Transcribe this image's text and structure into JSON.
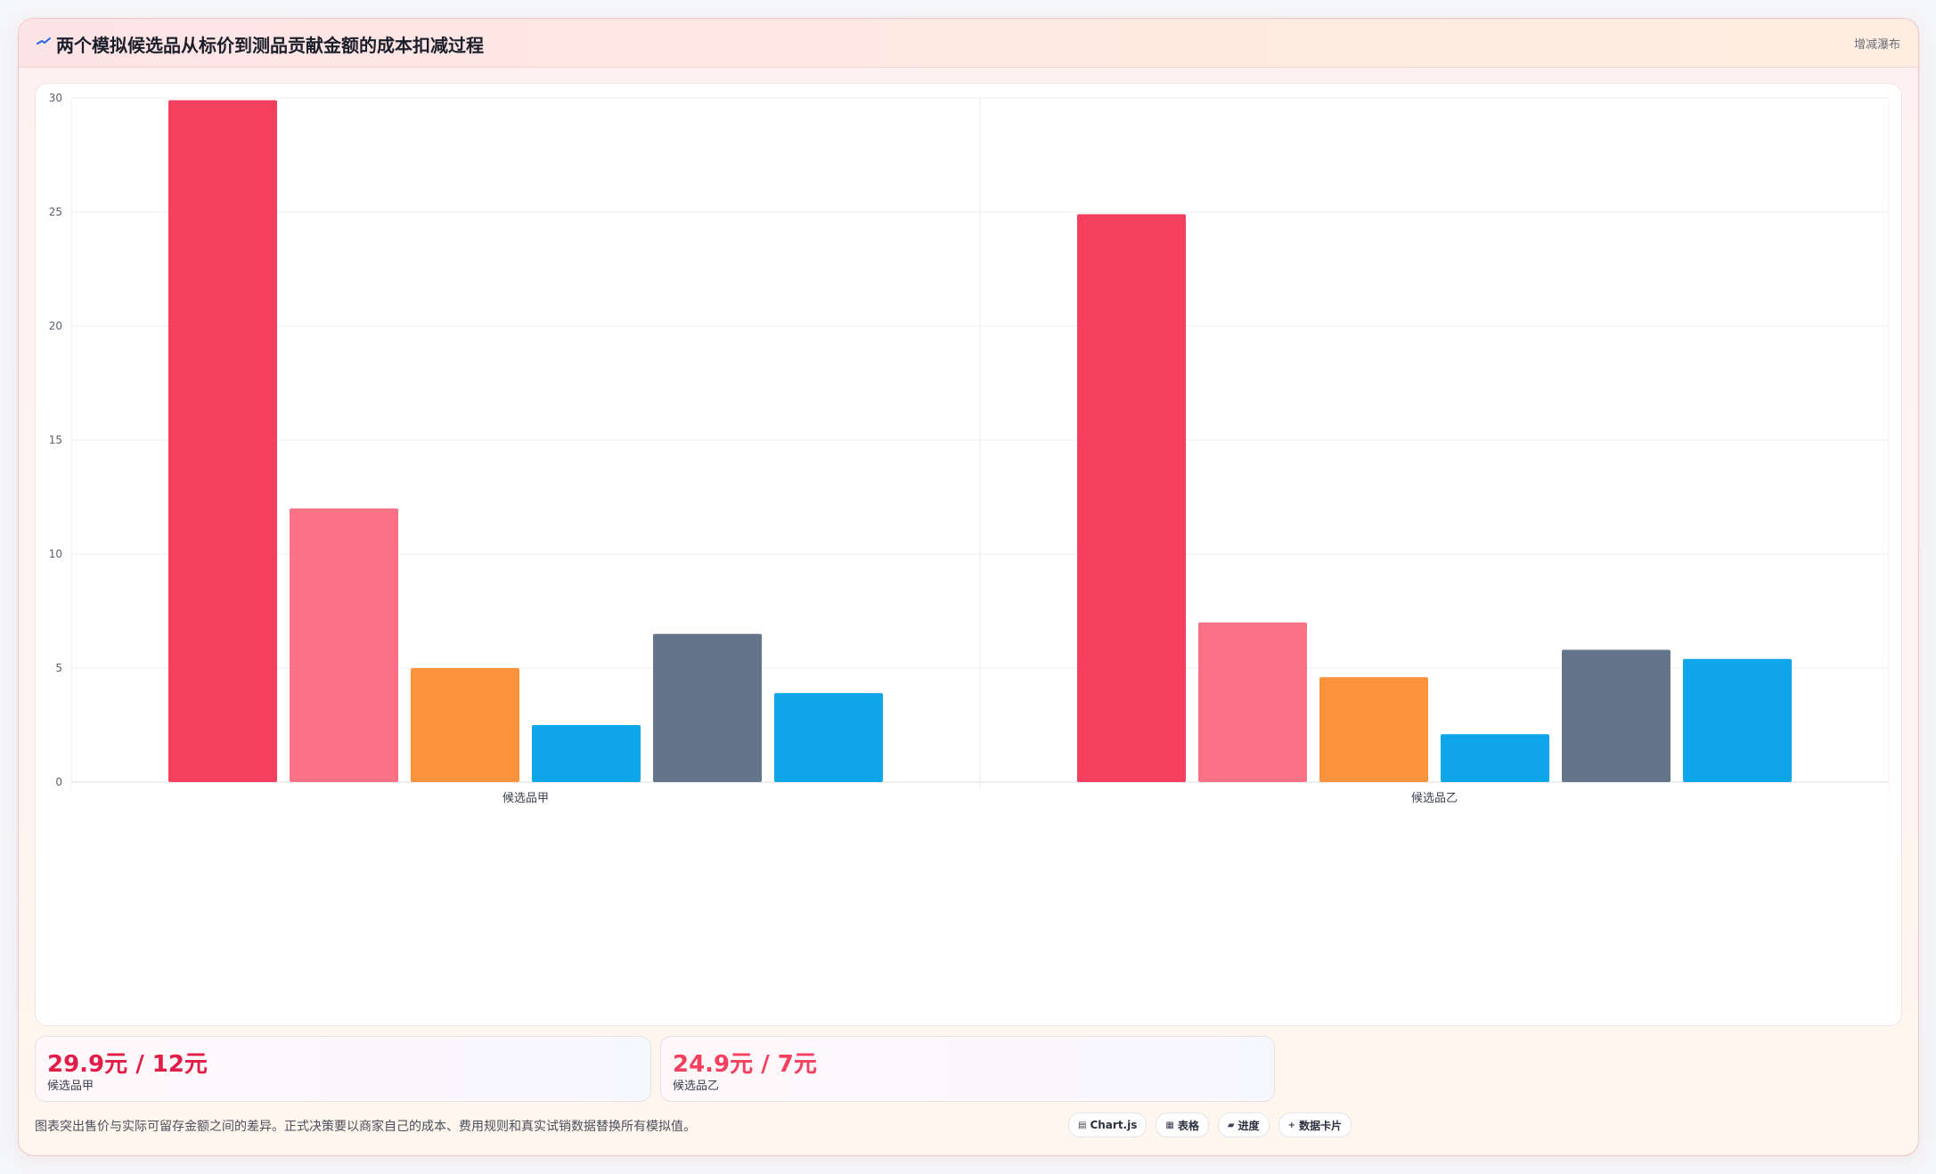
{
  "header": {
    "title": "两个模拟候选品从标价到测品贡献金额的成本扣减过程",
    "badge": "增减瀑布"
  },
  "chart_data": {
    "type": "bar",
    "categories": [
      "候选品甲",
      "候选品乙"
    ],
    "series": [
      {
        "values": [
          29.9,
          24.9
        ],
        "color": "#f43f5e"
      },
      {
        "values": [
          12,
          7
        ],
        "color": "#fb7185"
      },
      {
        "values": [
          5,
          4.6
        ],
        "color": "#fb923c"
      },
      {
        "values": [
          2.5,
          2.1
        ],
        "color": "#0ea5e9"
      },
      {
        "values": [
          6.5,
          5.8
        ],
        "color": "#64748b"
      },
      {
        "values": [
          3.9,
          5.4
        ],
        "color": "#0ea5e9"
      }
    ],
    "ylim": [
      0,
      30
    ],
    "yticks": [
      0,
      5,
      10,
      15,
      20,
      25,
      30
    ],
    "grid": true,
    "legend": "none",
    "xlabel": "",
    "ylabel": ""
  },
  "stats": [
    {
      "value": "29.9元 / 12元",
      "label": "候选品甲",
      "color": "#e11d48"
    },
    {
      "value": "24.9元 / 7元",
      "label": "候选品乙",
      "color": "#f43f5e"
    }
  ],
  "note": "图表突出售价与实际可留存金额之间的差异。正式决策要以商家自己的成本、费用规则和真实试销数据替换所有模拟值。",
  "toolbar": [
    {
      "icon": "chart-icon",
      "glyph": "▤",
      "label": "Chart.js"
    },
    {
      "icon": "table-icon",
      "glyph": "▦",
      "label": "表格"
    },
    {
      "icon": "progress-icon",
      "glyph": "▰",
      "label": "进度"
    },
    {
      "icon": "plus-icon",
      "glyph": "+",
      "label": "数据卡片"
    }
  ]
}
